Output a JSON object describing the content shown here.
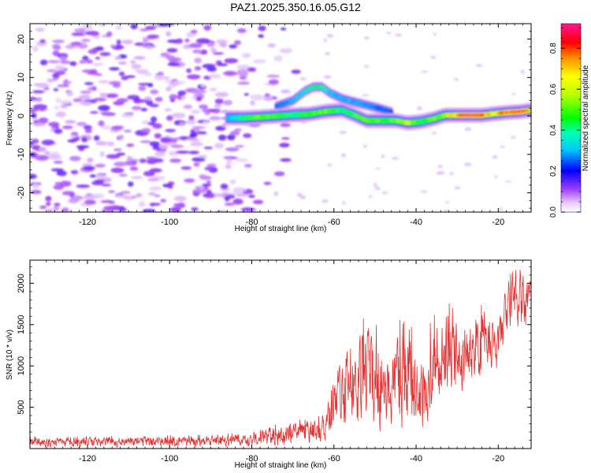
{
  "title": "PAZ1.2025.350.16.05.G12",
  "chart_data": [
    {
      "type": "heatmap",
      "xlabel": "Height of straight line (km)",
      "ylabel": "Frequency (Hz)",
      "xlim": [
        -134,
        -12
      ],
      "ylim": [
        -25,
        24
      ],
      "xticks": [
        -120,
        -100,
        -80,
        -60,
        -40,
        -20
      ],
      "yticks": [
        -20,
        -10,
        0,
        10,
        20
      ],
      "colorbar": {
        "label": "Normalized spectral amplitude",
        "range": [
          0,
          0.92
        ],
        "ticks": [
          0.0,
          0.2,
          0.4,
          0.6,
          0.8
        ]
      },
      "main_signal_path": {
        "x": [
          -86,
          -82,
          -78,
          -74,
          -70,
          -66,
          -62,
          -58,
          -55,
          -52,
          -48,
          -45,
          -42,
          -39,
          -36,
          -33,
          -30,
          -27,
          -24,
          -21,
          -18,
          -15,
          -12
        ],
        "y": [
          -0.5,
          -0.5,
          -0.3,
          0,
          0.3,
          0.5,
          1.2,
          1.5,
          0.2,
          -1.2,
          -1.2,
          -1.2,
          -1.8,
          -1.5,
          -0.8,
          0.2,
          0.2,
          0.2,
          0.2,
          0.6,
          0.9,
          1.1,
          1.5
        ],
        "amplitude": [
          0.3,
          0.45,
          0.55,
          0.5,
          0.45,
          0.5,
          0.55,
          0.45,
          0.5,
          0.55,
          0.5,
          0.5,
          0.65,
          0.45,
          0.55,
          0.6,
          0.8,
          0.92,
          0.85,
          0.7,
          0.85,
          0.9,
          0.75
        ]
      },
      "secondary_signal_path": {
        "x": [
          -74,
          -70,
          -67,
          -65,
          -63,
          -61,
          -58,
          -55,
          -52,
          -49,
          -46
        ],
        "y": [
          2.5,
          4,
          6.5,
          7.5,
          7.6,
          6,
          4.5,
          3.6,
          2.8,
          2.0,
          1.0
        ],
        "amplitude": [
          0.25,
          0.3,
          0.4,
          0.45,
          0.45,
          0.35,
          0.3,
          0.3,
          0.3,
          0.25,
          0.25
        ]
      },
      "noise_region_x": [
        -134,
        -70
      ],
      "noise_amplitude": 0.15
    },
    {
      "type": "line",
      "xlabel": "Height of straight line (km)",
      "ylabel": "SNR (10 * v/v)",
      "xlim": [
        -134,
        -12
      ],
      "ylim": [
        0,
        2280
      ],
      "xticks": [
        -120,
        -100,
        -80,
        -60,
        -40,
        -20
      ],
      "yticks": [
        500,
        1000,
        1500,
        2000
      ],
      "series": [
        {
          "name": "SNR",
          "color": "#e83030",
          "envelope": {
            "x": [
              -134,
              -110,
              -90,
              -80,
              -72,
              -66,
              -62,
              -60,
              -58,
              -55,
              -52,
              -50,
              -47,
              -44,
              -42,
              -40,
              -38,
              -36,
              -34,
              -32,
              -30,
              -28,
              -26,
              -24,
              -22,
              -20,
              -18,
              -16,
              -14,
              -12
            ],
            "low": [
              0,
              0,
              0,
              0,
              0,
              40,
              40,
              200,
              200,
              150,
              100,
              100,
              100,
              100,
              100,
              80,
              200,
              300,
              500,
              500,
              600,
              600,
              800,
              800,
              900,
              800,
              1300,
              1500,
              1200,
              1600
            ],
            "high": [
              150,
              160,
              170,
              220,
              320,
              380,
              450,
              900,
              1150,
              1450,
              1650,
              1700,
              1250,
              1550,
              1850,
              1150,
              1250,
              1650,
              1550,
              1800,
              1750,
              1700,
              1600,
              1900,
              1750,
              1600,
              2050,
              2280,
              2250,
              2100
            ]
          }
        }
      ]
    }
  ]
}
